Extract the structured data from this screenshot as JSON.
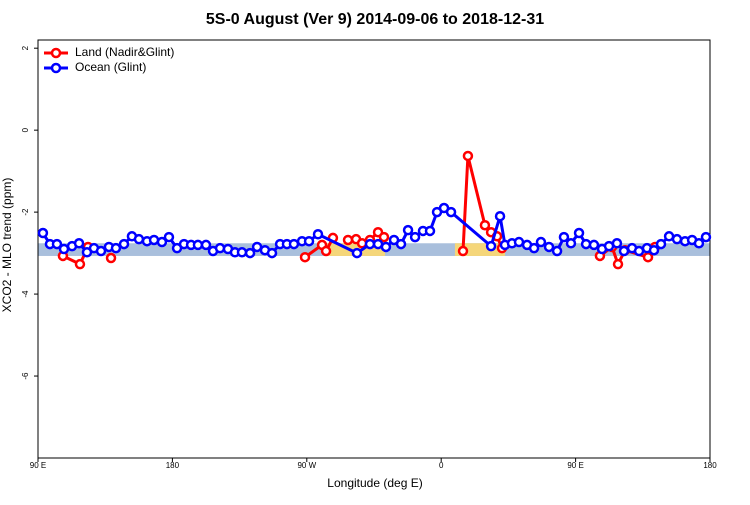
{
  "chart_data": {
    "type": "line",
    "title": "5S-0 August (Ver 9)   2014-09-06 to 2018-12-31",
    "x_label": "Longitude (deg E)",
    "y_label": "XCO2 - MLO trend (ppm)",
    "xlim": [
      90,
      540
    ],
    "ylim": [
      -8,
      2.2
    ],
    "xticks": [
      {
        "value": 90,
        "label": "90 E"
      },
      180,
      {
        "value": 270,
        "label": "90 W"
      },
      {
        "value": 360,
        "label": "0"
      },
      {
        "value": 450,
        "label": "90 E"
      },
      180.0001
    ],
    "yticks": [
      2,
      0,
      -2,
      -4,
      -6
    ],
    "legend": "top-left",
    "bands": [
      {
        "x": [
          90,
          540
        ],
        "y": [
          -3.07,
          -2.76
        ],
        "color": "#a9bfdc"
      },
      {
        "x": [
          282.2,
          322.4
        ],
        "y": [
          -3.07,
          -2.76
        ],
        "color": "#f5d67a"
      },
      {
        "x": [
          369.2,
          402.7
        ],
        "y": [
          -3.07,
          -2.76
        ],
        "color": "#f5d67a"
      }
    ],
    "series": [
      {
        "name": "Land (Nadir&Glint)",
        "color": "#ff0000",
        "x": [
          106.7,
          118.1,
          123.5,
          null,
          138.9,
          null,
          268.8,
          280.2,
          282.9,
          287.5,
          null,
          297.6,
          303.0,
          307.0,
          312.3,
          317.7,
          321.7,
          null,
          374.6,
          377.9,
          389.3,
          393.4,
          397.4,
          400.7,
          null,
          466.3,
          474.4,
          478.4,
          483.1,
          498.5,
          503.2
        ],
        "values": [
          -3.07,
          -3.27,
          -2.85,
          null,
          -3.12,
          null,
          -3.1,
          -2.8,
          -2.95,
          -2.63,
          null,
          -2.68,
          -2.66,
          -2.76,
          -2.68,
          -2.49,
          -2.61,
          null,
          -2.95,
          -0.63,
          -2.32,
          -2.49,
          -2.59,
          -2.88,
          null,
          -3.07,
          -2.85,
          -3.27,
          -2.93,
          -3.1,
          -2.85
        ]
      },
      {
        "name": "Ocean (Glint)",
        "color": "#0000ff",
        "x": [
          93.3,
          98.0,
          102.7,
          107.4,
          112.8,
          117.5,
          122.8,
          127.5,
          132.2,
          137.5,
          142.2,
          147.6,
          152.9,
          157.6,
          163.0,
          167.7,
          173.0,
          177.7,
          183.1,
          187.8,
          192.5,
          197.1,
          202.5,
          207.2,
          211.9,
          217.2,
          221.9,
          226.6,
          232.0,
          236.7,
          242.0,
          246.7,
          252.1,
          256.7,
          261.4,
          266.8,
          271.5,
          277.5,
          303.6,
          312.3,
          317.7,
          323.0,
          328.4,
          333.1,
          337.8,
          342.5,
          347.8,
          352.5,
          357.2,
          361.9,
          366.6,
          393.4,
          399.4,
          402.7,
          407.4,
          412.1,
          417.5,
          422.2,
          426.8,
          432.2,
          437.6,
          442.2,
          446.9,
          452.3,
          457.0,
          462.3,
          467.7,
          472.4,
          477.7,
          482.4,
          487.8,
          492.5,
          497.8,
          502.5,
          507.2,
          512.6,
          517.9,
          523.3,
          528.0,
          532.6,
          537.3
        ],
        "values": [
          -2.51,
          -2.78,
          -2.78,
          -2.9,
          -2.83,
          -2.76,
          -2.98,
          -2.88,
          -2.95,
          -2.85,
          -2.88,
          -2.78,
          -2.59,
          -2.66,
          -2.71,
          -2.68,
          -2.73,
          -2.61,
          -2.88,
          -2.78,
          -2.8,
          -2.8,
          -2.8,
          -2.95,
          -2.88,
          -2.9,
          -2.98,
          -2.98,
          -3.0,
          -2.85,
          -2.93,
          -3.0,
          -2.78,
          -2.78,
          -2.78,
          -2.71,
          -2.71,
          -2.54,
          -3.0,
          -2.78,
          -2.78,
          -2.85,
          -2.68,
          -2.78,
          -2.44,
          -2.61,
          -2.46,
          -2.46,
          -2.0,
          -1.9,
          -2.0,
          -2.83,
          -2.1,
          -2.8,
          -2.76,
          -2.73,
          -2.8,
          -2.88,
          -2.73,
          -2.85,
          -2.95,
          -2.61,
          -2.76,
          -2.51,
          -2.78,
          -2.8,
          -2.9,
          -2.83,
          -2.76,
          -2.95,
          -2.88,
          -2.95,
          -2.88,
          -2.93,
          -2.78,
          -2.59,
          -2.66,
          -2.71,
          -2.68,
          -2.76,
          -2.61
        ]
      }
    ]
  }
}
